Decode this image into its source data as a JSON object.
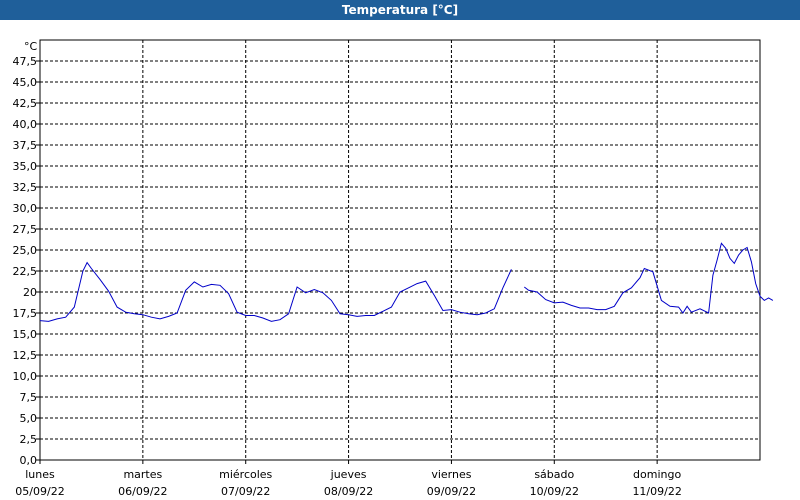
{
  "window": {
    "title": "Temperatura [°C]"
  },
  "colors": {
    "titlebar": "#1f5f9a",
    "line": "#0000c8",
    "grid": "#000000"
  },
  "chart_data": {
    "type": "line",
    "title": "Temperatura [°C]",
    "ylabel": "°C",
    "ylim": [
      0,
      50
    ],
    "grid": true,
    "ytick_step": 2.5,
    "y_tick_labels": [
      "0,0",
      "2,5",
      "5,0",
      "7,5",
      "10,0",
      "12,5",
      "15,0",
      "17,5",
      "20",
      "22,5",
      "25,0",
      "27,5",
      "30,0",
      "32,5",
      "35,0",
      "37,5",
      "40,0",
      "42,5",
      "45,0",
      "47,5"
    ],
    "x_start": "2022-09-05T00:00",
    "x_end": "2022-09-12T00:00",
    "days": [
      {
        "name": "lunes",
        "date": "05/09/22"
      },
      {
        "name": "martes",
        "date": "06/09/22"
      },
      {
        "name": "miércoles",
        "date": "07/09/22"
      },
      {
        "name": "jueves",
        "date": "08/09/22"
      },
      {
        "name": "viernes",
        "date": "09/09/22"
      },
      {
        "name": "sábado",
        "date": "10/09/22"
      },
      {
        "name": "domingo",
        "date": "11/09/22"
      }
    ],
    "series": [
      {
        "segments": [
          [
            [
              "2022-09-05T00:00",
              16.6
            ],
            [
              "2022-09-05T02:00",
              16.5
            ],
            [
              "2022-09-05T04:00",
              16.8
            ],
            [
              "2022-09-05T06:00",
              17.0
            ],
            [
              "2022-09-05T08:00",
              18.2
            ],
            [
              "2022-09-05T10:00",
              22.5
            ],
            [
              "2022-09-05T11:00",
              23.5
            ],
            [
              "2022-09-05T12:00",
              22.8
            ],
            [
              "2022-09-05T14:00",
              21.5
            ],
            [
              "2022-09-05T16:00",
              20.1
            ],
            [
              "2022-09-05T18:00",
              18.2
            ],
            [
              "2022-09-05T20:00",
              17.6
            ],
            [
              "2022-09-05T22:00",
              17.4
            ],
            [
              "2022-09-06T00:00",
              17.3
            ],
            [
              "2022-09-06T02:00",
              17.0
            ],
            [
              "2022-09-06T04:00",
              16.8
            ],
            [
              "2022-09-06T06:00",
              17.1
            ],
            [
              "2022-09-06T08:00",
              17.5
            ],
            [
              "2022-09-06T10:00",
              20.2
            ],
            [
              "2022-09-06T12:00",
              21.2
            ],
            [
              "2022-09-06T14:00",
              20.6
            ],
            [
              "2022-09-06T16:00",
              20.9
            ],
            [
              "2022-09-06T18:00",
              20.8
            ],
            [
              "2022-09-06T20:00",
              19.8
            ],
            [
              "2022-09-06T22:00",
              17.6
            ],
            [
              "2022-09-07T00:00",
              17.2
            ],
            [
              "2022-09-07T02:00",
              17.2
            ],
            [
              "2022-09-07T04:00",
              16.9
            ],
            [
              "2022-09-07T06:00",
              16.5
            ],
            [
              "2022-09-07T08:00",
              16.7
            ],
            [
              "2022-09-07T10:00",
              17.4
            ],
            [
              "2022-09-07T12:00",
              20.6
            ],
            [
              "2022-09-07T14:00",
              19.9
            ],
            [
              "2022-09-07T16:00",
              20.3
            ],
            [
              "2022-09-07T18:00",
              19.9
            ],
            [
              "2022-09-07T20:00",
              19.0
            ],
            [
              "2022-09-07T22:00",
              17.4
            ],
            [
              "2022-09-08T00:00",
              17.3
            ],
            [
              "2022-09-08T02:00",
              17.1
            ],
            [
              "2022-09-08T04:00",
              17.2
            ],
            [
              "2022-09-08T06:00",
              17.2
            ],
            [
              "2022-09-08T08:00",
              17.7
            ],
            [
              "2022-09-08T10:00",
              18.2
            ],
            [
              "2022-09-08T12:00",
              20.0
            ],
            [
              "2022-09-08T14:00",
              20.5
            ],
            [
              "2022-09-08T16:00",
              21.0
            ],
            [
              "2022-09-08T18:00",
              21.3
            ],
            [
              "2022-09-08T20:00",
              19.6
            ],
            [
              "2022-09-08T22:00",
              17.8
            ],
            [
              "2022-09-09T00:00",
              17.9
            ],
            [
              "2022-09-09T02:00",
              17.6
            ],
            [
              "2022-09-09T04:00",
              17.4
            ],
            [
              "2022-09-09T06:00",
              17.3
            ],
            [
              "2022-09-09T08:00",
              17.5
            ],
            [
              "2022-09-09T10:00",
              18.0
            ],
            [
              "2022-09-09T12:00",
              20.5
            ],
            [
              "2022-09-09T14:00",
              22.7
            ]
          ],
          [
            [
              "2022-09-09T17:00",
              20.6
            ],
            [
              "2022-09-09T18:00",
              20.2
            ],
            [
              "2022-09-09T20:00",
              20.0
            ],
            [
              "2022-09-09T22:00",
              19.1
            ],
            [
              "2022-09-10T00:00",
              18.7
            ],
            [
              "2022-09-10T02:00",
              18.8
            ],
            [
              "2022-09-10T04:00",
              18.4
            ],
            [
              "2022-09-10T06:00",
              18.1
            ],
            [
              "2022-09-10T08:00",
              18.1
            ],
            [
              "2022-09-10T10:00",
              17.9
            ],
            [
              "2022-09-10T12:00",
              17.9
            ],
            [
              "2022-09-10T14:00",
              18.3
            ],
            [
              "2022-09-10T16:00",
              19.9
            ],
            [
              "2022-09-10T18:00",
              20.5
            ],
            [
              "2022-09-10T20:00",
              21.7
            ],
            [
              "2022-09-10T21:00",
              22.8
            ],
            [
              "2022-09-10T23:00",
              22.4
            ],
            [
              "2022-09-11T01:00",
              19.0
            ],
            [
              "2022-09-11T03:00",
              18.3
            ],
            [
              "2022-09-11T05:00",
              18.2
            ],
            [
              "2022-09-11T06:00",
              17.5
            ],
            [
              "2022-09-11T07:00",
              18.3
            ],
            [
              "2022-09-11T08:00",
              17.6
            ],
            [
              "2022-09-11T10:00",
              18.0
            ],
            [
              "2022-09-11T12:00",
              17.5
            ],
            [
              "2022-09-11T13:00",
              22.0
            ],
            [
              "2022-09-11T14:00",
              23.8
            ],
            [
              "2022-09-11T15:00",
              25.8
            ],
            [
              "2022-09-11T16:00",
              25.2
            ],
            [
              "2022-09-11T17:00",
              24.0
            ],
            [
              "2022-09-11T18:00",
              23.4
            ],
            [
              "2022-09-11T19:00",
              24.4
            ],
            [
              "2022-09-11T20:00",
              25.0
            ],
            [
              "2022-09-11T21:00",
              25.3
            ],
            [
              "2022-09-11T22:00",
              23.6
            ],
            [
              "2022-09-11T23:00",
              21.0
            ],
            [
              "2022-09-12T00:00",
              19.5
            ],
            [
              "2022-09-12T01:00",
              19.0
            ],
            [
              "2022-09-12T02:00",
              19.3
            ],
            [
              "2022-09-12T03:00",
              19.0
            ]
          ]
        ]
      }
    ]
  }
}
